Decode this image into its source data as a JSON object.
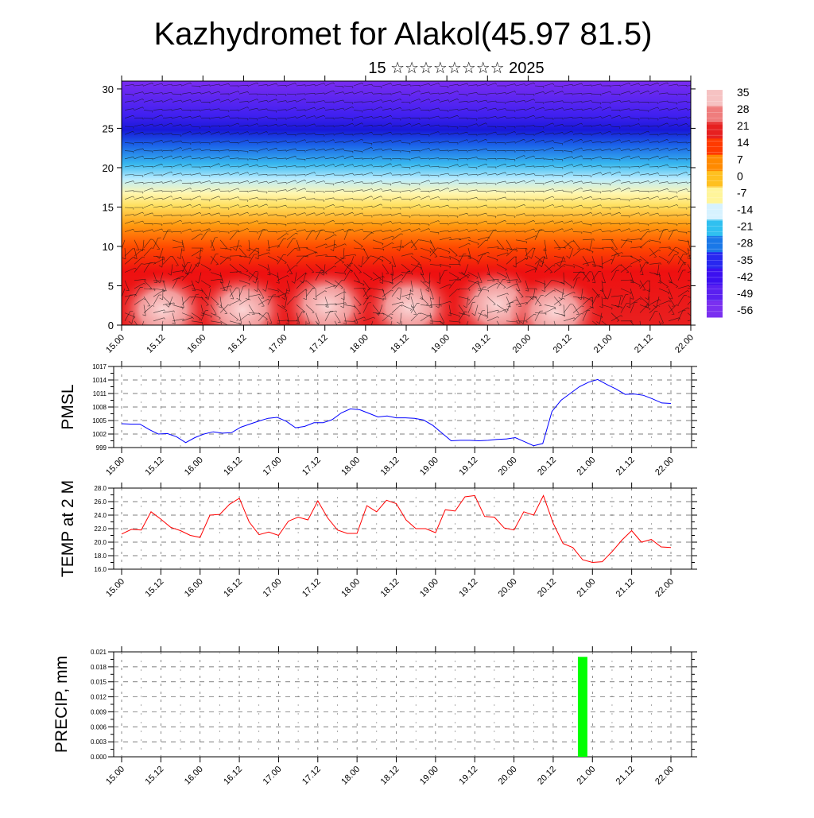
{
  "header": {
    "title": "Kazhydromet for Alakol(45.97 81.5)",
    "subtitle": "15 ☆☆☆☆☆☆☆☆ 2025"
  },
  "time_labels": [
    "15.00",
    "15.12",
    "16.00",
    "16.12",
    "17.00",
    "17.12",
    "18.00",
    "18.12",
    "19.00",
    "19.12",
    "20.00",
    "20.12",
    "21.00",
    "21.12",
    "22.00"
  ],
  "chart_data": [
    {
      "type": "heatmap",
      "name": "vertical-section",
      "x": [
        "15.00",
        "15.12",
        "16.00",
        "16.12",
        "17.00",
        "17.12",
        "18.00",
        "18.12",
        "19.00",
        "19.12",
        "20.00",
        "20.12",
        "21.00",
        "21.12",
        "22.00"
      ],
      "yticks": [
        "0",
        "5",
        "10",
        "15",
        "20",
        "25",
        "30"
      ],
      "ylim": [
        0,
        31
      ],
      "colorbar": {
        "labels": [
          "35",
          "28",
          "21",
          "14",
          "7",
          "0",
          "-7",
          "-14",
          "-21",
          "-28",
          "-35",
          "-42",
          "-49",
          "-56"
        ],
        "colors": [
          "#f6c2c2",
          "#ef7d7d",
          "#e62020",
          "#ff3a00",
          "#ff8a00",
          "#ffc020",
          "#fff59a",
          "#d6f2ff",
          "#30c0f0",
          "#1a78e8",
          "#2828f0",
          "#3c10f0",
          "#5a20f0",
          "#7a30f0"
        ]
      },
      "wind": "barbs"
    },
    {
      "type": "line",
      "name": "pmsl",
      "ylabel": "PMSL",
      "yticks": [
        "999",
        "1002",
        "1005",
        "1008",
        "1011",
        "1014",
        "1017"
      ],
      "ylim": [
        999,
        1017
      ],
      "color": "#0000ff",
      "values": [
        1004.3,
        1004.2,
        1004.2,
        1003.0,
        1002.0,
        1002.1,
        1001.4,
        1000.1,
        1001.2,
        1002.0,
        1002.5,
        1002.2,
        1002.3,
        1003.5,
        1004.2,
        1004.9,
        1005.5,
        1005.7,
        1004.8,
        1003.4,
        1003.7,
        1004.5,
        1004.5,
        1005.2,
        1006.7,
        1007.6,
        1007.4,
        1006.6,
        1005.8,
        1006.0,
        1005.6,
        1005.6,
        1005.5,
        1005.1,
        1003.9,
        1002.2,
        1000.5,
        1000.6,
        1000.6,
        1000.5,
        1000.6,
        1000.8,
        1000.9,
        1001.2,
        1000.3,
        999.4,
        999.9,
        1007.0,
        1009.5,
        1011.0,
        1012.5,
        1013.5,
        1014.1,
        1013.0,
        1012.0,
        1010.8,
        1010.9,
        1010.6,
        1009.8,
        1008.9,
        1008.8
      ]
    },
    {
      "type": "line",
      "name": "temp2m",
      "ylabel": "TEMP at 2 M",
      "yticks": [
        "16.0",
        "18.0",
        "20.0",
        "22.0",
        "24.0",
        "26.0",
        "28.0"
      ],
      "ylim": [
        16,
        28
      ],
      "color": "#ff0000",
      "values": [
        21.2,
        21.9,
        21.8,
        24.5,
        23.4,
        22.2,
        21.7,
        21.0,
        20.7,
        24.0,
        24.1,
        25.6,
        26.5,
        23.0,
        21.1,
        21.5,
        21.0,
        23.1,
        23.7,
        23.3,
        26.1,
        23.6,
        21.8,
        21.3,
        21.3,
        25.4,
        24.5,
        26.2,
        25.7,
        23.3,
        22.0,
        22.0,
        21.4,
        24.8,
        24.6,
        26.7,
        26.9,
        23.8,
        23.7,
        22.1,
        21.8,
        24.5,
        24.0,
        26.9,
        22.8,
        19.8,
        19.2,
        17.4,
        17.0,
        17.1,
        18.6,
        20.3,
        21.7,
        20.0,
        20.4,
        19.3,
        19.2
      ]
    },
    {
      "type": "bar",
      "name": "precip",
      "ylabel": "PRECIP, mm",
      "yticks": [
        "0.000",
        "0.003",
        "0.006",
        "0.009",
        "0.012",
        "0.015",
        "0.018",
        "0.021"
      ],
      "ylim": [
        0,
        0.021
      ],
      "color": "#00ff00",
      "bars": [
        {
          "x": 47,
          "value": 0.02
        }
      ]
    }
  ]
}
